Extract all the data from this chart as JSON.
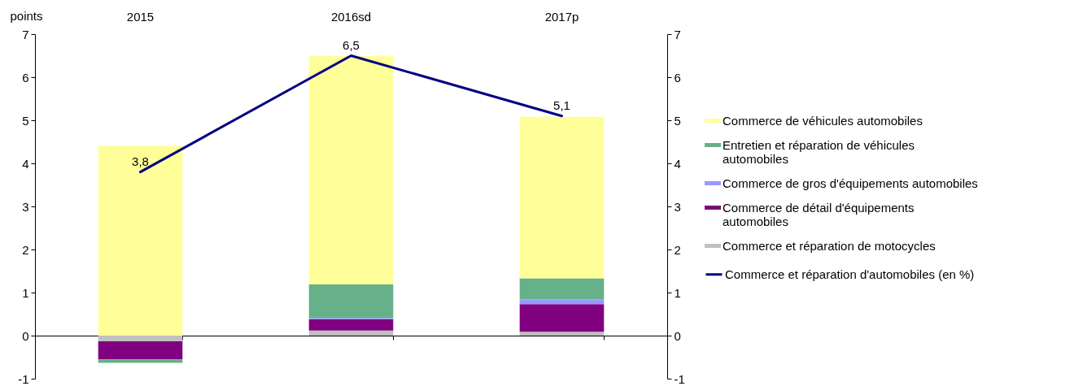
{
  "chart_data": {
    "type": "bar",
    "stacked": true,
    "ylabel": "points",
    "categories": [
      "2015",
      "2016sd",
      "2017p"
    ],
    "series": [
      {
        "name": "Commerce et réparation de motocycles",
        "color": "#c0c0c0",
        "values": [
          -0.13,
          0.12,
          0.09
        ]
      },
      {
        "name": "Commerce de détail d'équipements automobiles",
        "color": "#800080",
        "values": [
          -0.42,
          0.26,
          0.64
        ]
      },
      {
        "name": "Commerce de gros d'équipements automobiles",
        "color": "#9999ff",
        "values": [
          null,
          0.03,
          0.11
        ]
      },
      {
        "name": "Entretien et réparation de véhicules automobiles",
        "color": "#66b08a",
        "values": [
          -0.08,
          0.78,
          0.49
        ]
      },
      {
        "name": "Commerce de véhicules automobiles",
        "color": "#ffff99",
        "values": [
          4.41,
          5.3,
          3.75
        ]
      },
      {
        "name": "Commerce et réparation d'automobiles (en %)",
        "type": "line",
        "axis": "y2",
        "color": "#000080",
        "values": [
          3.8,
          6.5,
          5.1
        ],
        "value_labels": [
          "3,8",
          "6,5",
          "5,1"
        ]
      }
    ],
    "ylim": [
      -1,
      7
    ],
    "yticks": [
      -1,
      0,
      1,
      2,
      3,
      4,
      5,
      6,
      7
    ],
    "y2lim": [
      -1,
      7
    ],
    "y2ticks": [
      -1,
      0,
      1,
      2,
      3,
      4,
      5,
      6,
      7
    ],
    "legend": "right"
  }
}
